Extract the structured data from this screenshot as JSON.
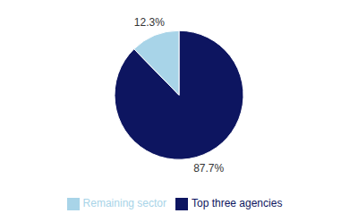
{
  "chart_data": {
    "type": "pie",
    "categories": [
      "Top three agencies",
      "Remaining sector"
    ],
    "values": [
      87.7,
      12.3
    ],
    "value_labels": [
      "87.7%",
      "12.3%"
    ],
    "colors": [
      "#0d1560",
      "#a8d4e8"
    ],
    "data_labels": true,
    "legend": "bottom"
  }
}
